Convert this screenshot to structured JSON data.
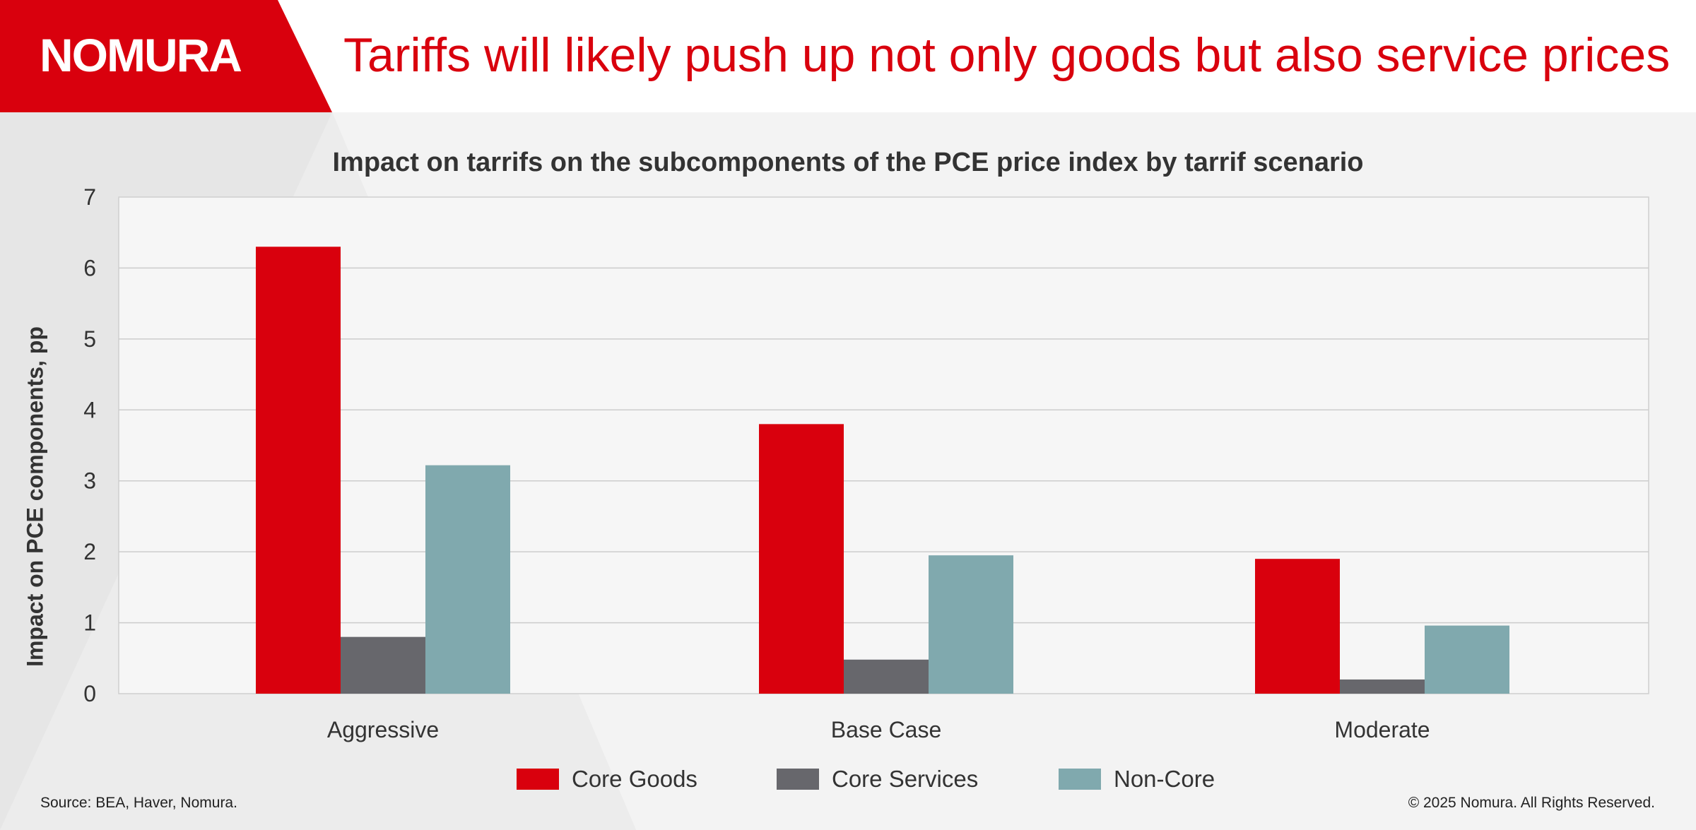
{
  "header": {
    "logo_text": "NOMURA",
    "headline": "Tariffs will likely push up not only goods but also service prices"
  },
  "colors": {
    "brand_red": "#d9000d",
    "core_goods": "#d9000d",
    "core_services": "#67676c",
    "non_core": "#80a9ae"
  },
  "chart_data": {
    "type": "bar",
    "title": "Impact on tarrifs on the subcomponents of the PCE price index by tarrif scenario",
    "xlabel": "",
    "ylabel": "Impact on PCE components, pp",
    "ylim": [
      0,
      7
    ],
    "yticks": [
      0,
      1,
      2,
      3,
      4,
      5,
      6,
      7
    ],
    "categories": [
      "Aggressive",
      "Base Case",
      "Moderate"
    ],
    "series": [
      {
        "name": "Core Goods",
        "color": "#d9000d",
        "values": [
          6.3,
          3.8,
          1.9
        ]
      },
      {
        "name": "Core Services",
        "color": "#67676c",
        "values": [
          0.8,
          0.48,
          0.2
        ]
      },
      {
        "name": "Non-Core",
        "color": "#80a9ae",
        "values": [
          3.22,
          1.95,
          0.96
        ]
      }
    ],
    "grid": true,
    "legend": "bottom"
  },
  "footer": {
    "source": "Source: BEA, Haver, Nomura.",
    "copyright": "© 2025 Nomura. All Rights Reserved."
  }
}
